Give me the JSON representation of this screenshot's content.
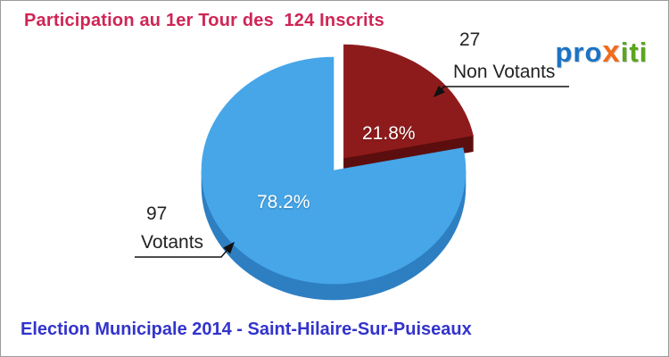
{
  "chart_data": {
    "type": "pie",
    "title": "Participation au 1er Tour des  124 Inscrits",
    "footer": "Election Municipale 2014 - Saint-Hilaire-Sur-Puiseaux",
    "total_inscrits": 124,
    "start_angle_deg": -90,
    "direction": "clockwise",
    "legend_position": "callouts",
    "slices": [
      {
        "label": "Non Votants",
        "count": 27,
        "pct": 21.8,
        "pct_label": "21.8%",
        "color": "#8e1b1b",
        "side_color": "#5c0e0e",
        "exploded": true
      },
      {
        "label": "Votants",
        "count": 97,
        "pct": 78.2,
        "pct_label": "78.2%",
        "color": "#46a6e8",
        "side_color": "#2e7fc2",
        "exploded": false
      }
    ]
  },
  "logo": {
    "parts": [
      {
        "text": "pro",
        "color": "#1a73c6"
      },
      {
        "text": "x",
        "color": "#f26a1b"
      },
      {
        "text": "iti",
        "color": "#5aa71e"
      }
    ]
  },
  "colors": {
    "title": "#cf2556",
    "footer": "#3333cc",
    "label_text": "#222222",
    "pct_text": "#ffffff",
    "background": "#ffffff",
    "border": "#999999",
    "arrow": "#111111"
  }
}
